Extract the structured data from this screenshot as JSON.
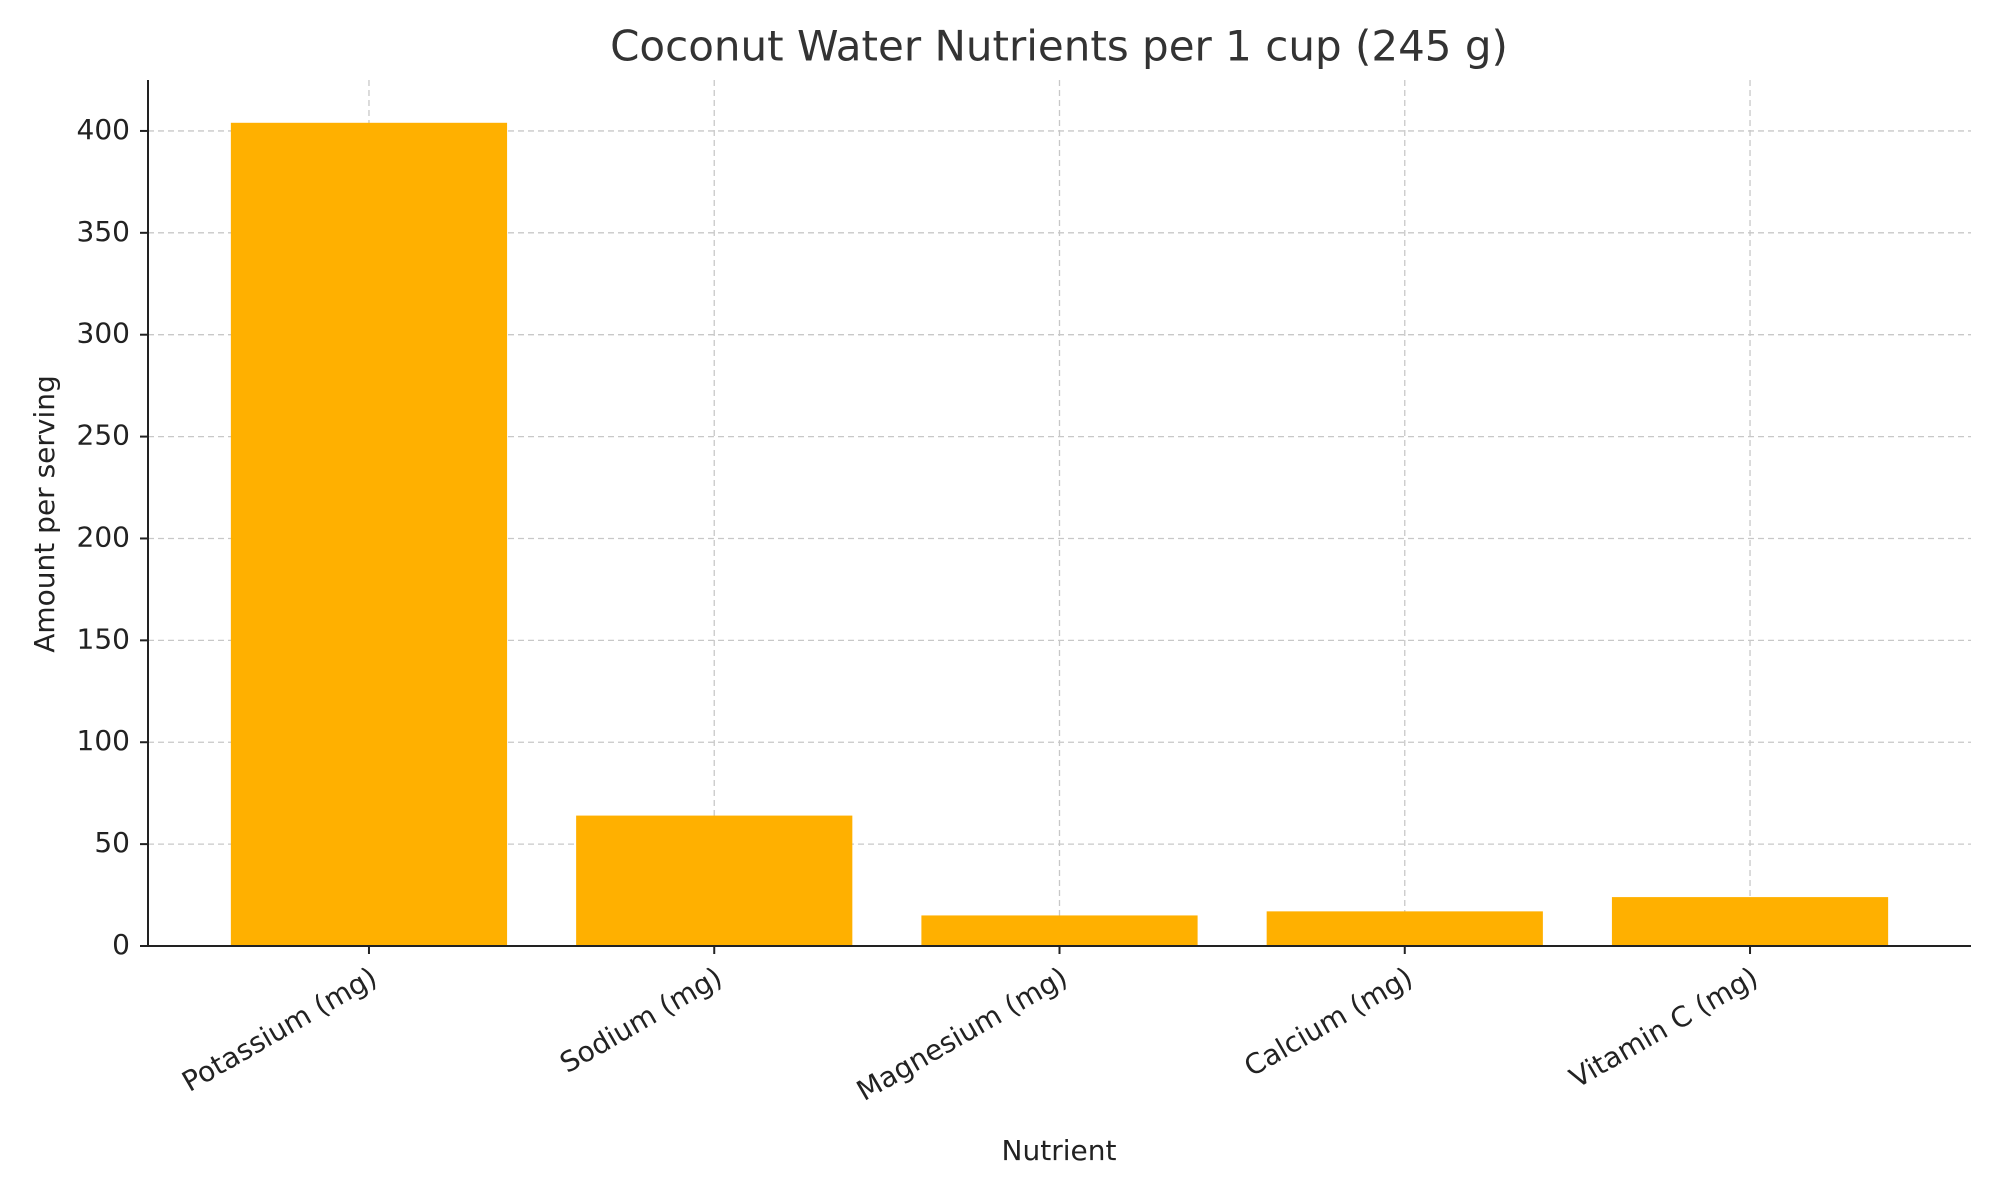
{
  "chart_data": {
    "type": "bar",
    "title": "Coconut Water Nutrients per 1 cup (245 g)",
    "x_label": "Nutrient",
    "y_label": "Amount per serving",
    "categories": [
      "Potassium (mg)",
      "Sodium (mg)",
      "Magnesium (mg)",
      "Calcium (mg)",
      "Vitamin C (mg)"
    ],
    "values": [
      404,
      64,
      15,
      17,
      24
    ],
    "color": "#ffb000",
    "ylim": [
      0,
      425
    ],
    "yticks": [
      0,
      50,
      100,
      150,
      200,
      250,
      300,
      350,
      400
    ],
    "grid": true
  }
}
